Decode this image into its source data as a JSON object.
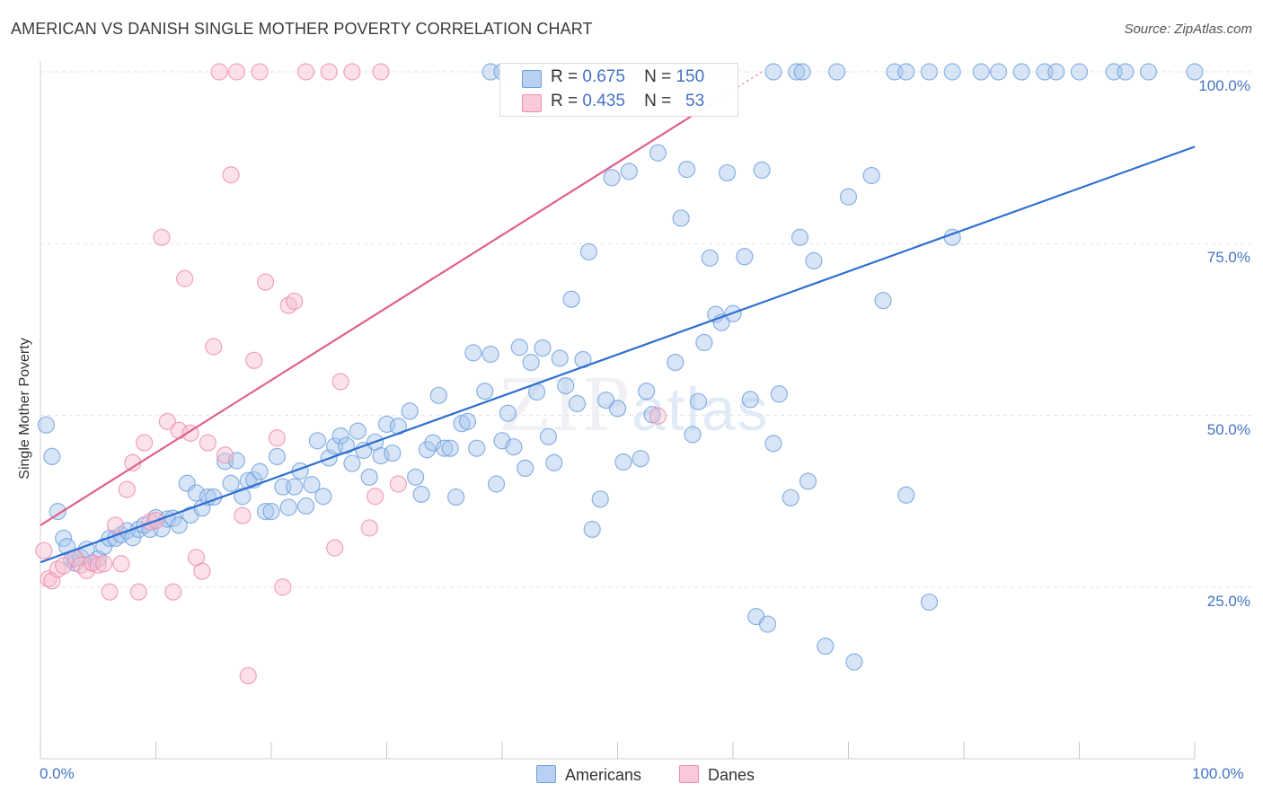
{
  "title": "AMERICAN VS DANISH SINGLE MOTHER POVERTY CORRELATION CHART",
  "source": "Source: ZipAtlas.com",
  "watermark": {
    "zip": "ZIP",
    "atlas": "atlas"
  },
  "stats": {
    "americans": {
      "r_label": "R =",
      "r": "0.675",
      "n_label": "N =",
      "n": "150"
    },
    "danes": {
      "r_label": "R =",
      "r": "0.435",
      "n_label": "N =",
      "n": "53"
    }
  },
  "legend": {
    "americans": "Americans",
    "danes": "Danes"
  },
  "colors": {
    "americans": "#6fa0dc",
    "americans_fill": "#a9c6ee",
    "americans_line": "#2f6fd0",
    "danes": "#f08cab",
    "danes_fill": "#f6bfd0",
    "danes_line": "#e0608a",
    "tick_text": "#4472c4"
  },
  "chart_data": {
    "type": "scatter",
    "title": "AMERICAN VS DANISH SINGLE MOTHER POVERTY CORRELATION CHART",
    "xlabel": "",
    "ylabel": "Single Mother Poverty",
    "xlim": [
      0,
      100
    ],
    "ylim": [
      0,
      100
    ],
    "x_tick_labels": [
      "0.0%",
      "100.0%"
    ],
    "y_ticks": [
      25,
      50,
      75,
      100
    ],
    "y_tick_labels": [
      "25.0%",
      "50.0%",
      "75.0%",
      "100.0%"
    ],
    "series": [
      {
        "name": "Americans",
        "r": 0.675,
        "n": 150,
        "trend": {
          "x": [
            0,
            100
          ],
          "y": [
            28.6,
            89.1
          ]
        },
        "points": [
          [
            0.5,
            48.6
          ],
          [
            1,
            44
          ],
          [
            1.5,
            36
          ],
          [
            2,
            32.1
          ],
          [
            2.3,
            30.9
          ],
          [
            2.7,
            29
          ],
          [
            3,
            28.5
          ],
          [
            3.5,
            29.3
          ],
          [
            4,
            30.5
          ],
          [
            4.5,
            28.5
          ],
          [
            5,
            29.1
          ],
          [
            5.5,
            30.9
          ],
          [
            6,
            32.1
          ],
          [
            6.5,
            32.1
          ],
          [
            7,
            32.6
          ],
          [
            7.5,
            33.2
          ],
          [
            8,
            32.2
          ],
          [
            8.5,
            33.4
          ],
          [
            9,
            34
          ],
          [
            9.5,
            33.4
          ],
          [
            10,
            35.1
          ],
          [
            10.5,
            33.5
          ],
          [
            11,
            34.9
          ],
          [
            11.5,
            35
          ],
          [
            12,
            34
          ],
          [
            12.7,
            40.1
          ],
          [
            13,
            35.5
          ],
          [
            13.5,
            38.7
          ],
          [
            14,
            36.5
          ],
          [
            14.5,
            38.1
          ],
          [
            15,
            38.1
          ],
          [
            16,
            43.3
          ],
          [
            16.5,
            40.1
          ],
          [
            17,
            43.4
          ],
          [
            17.5,
            38.2
          ],
          [
            18,
            40.5
          ],
          [
            18.5,
            40.6
          ],
          [
            19,
            41.8
          ],
          [
            19.5,
            36
          ],
          [
            20,
            36
          ],
          [
            20.5,
            44
          ],
          [
            21,
            39.6
          ],
          [
            21.5,
            36.6
          ],
          [
            22,
            39.6
          ],
          [
            22.5,
            41.9
          ],
          [
            23,
            36.8
          ],
          [
            23.5,
            39.9
          ],
          [
            24,
            46.3
          ],
          [
            24.5,
            38.2
          ],
          [
            25,
            43.8
          ],
          [
            25.5,
            45.5
          ],
          [
            26,
            47
          ],
          [
            26.5,
            45.6
          ],
          [
            27,
            43
          ],
          [
            27.5,
            47.7
          ],
          [
            28,
            44.9
          ],
          [
            28.5,
            41
          ],
          [
            29,
            46.1
          ],
          [
            29.5,
            44.1
          ],
          [
            30,
            48.7
          ],
          [
            30.5,
            44.5
          ],
          [
            31,
            48.4
          ],
          [
            32,
            50.6
          ],
          [
            32.5,
            41
          ],
          [
            33,
            38.5
          ],
          [
            33.5,
            45
          ],
          [
            34,
            46
          ],
          [
            34.5,
            52.9
          ],
          [
            35,
            45.2
          ],
          [
            35.5,
            45.2
          ],
          [
            36,
            38.1
          ],
          [
            36.5,
            48.8
          ],
          [
            37,
            49.1
          ],
          [
            37.5,
            59.1
          ],
          [
            37.8,
            45.2
          ],
          [
            38.5,
            53.5
          ],
          [
            39,
            58.9
          ],
          [
            39.5,
            40
          ],
          [
            40,
            46.3
          ],
          [
            40.5,
            50.3
          ],
          [
            41,
            45.4
          ],
          [
            41.5,
            59.9
          ],
          [
            42,
            42.3
          ],
          [
            42.5,
            57.7
          ],
          [
            43,
            53.4
          ],
          [
            43.5,
            59.8
          ],
          [
            44,
            46.9
          ],
          [
            44.5,
            43.1
          ],
          [
            45,
            58.3
          ],
          [
            45.5,
            54.3
          ],
          [
            46,
            66.9
          ],
          [
            46.5,
            51.7
          ],
          [
            47,
            58.1
          ],
          [
            47.5,
            73.8
          ],
          [
            47.8,
            33.4
          ],
          [
            48.5,
            37.8
          ],
          [
            49,
            52.2
          ],
          [
            49.5,
            84.6
          ],
          [
            50,
            51
          ],
          [
            50.5,
            43.2
          ],
          [
            51,
            85.5
          ],
          [
            52,
            43.7
          ],
          [
            52.5,
            53.5
          ],
          [
            53,
            50.1
          ],
          [
            53.5,
            88.2
          ],
          [
            55,
            57.7
          ],
          [
            55.5,
            78.7
          ],
          [
            56,
            85.8
          ],
          [
            56.5,
            47.2
          ],
          [
            57,
            52
          ],
          [
            57.5,
            60.6
          ],
          [
            58,
            72.9
          ],
          [
            58.5,
            64.7
          ],
          [
            59,
            63.5
          ],
          [
            59.5,
            85.3
          ],
          [
            60,
            64.8
          ],
          [
            61,
            73.1
          ],
          [
            61.5,
            52.3
          ],
          [
            62,
            20.7
          ],
          [
            62.5,
            85.7
          ],
          [
            63,
            19.6
          ],
          [
            63.5,
            45.9
          ],
          [
            64,
            53.1
          ],
          [
            65,
            38
          ],
          [
            65.8,
            75.9
          ],
          [
            66.5,
            40.4
          ],
          [
            67,
            72.5
          ],
          [
            68,
            16.4
          ],
          [
            70,
            81.8
          ],
          [
            70.5,
            14.1
          ],
          [
            72,
            84.9
          ],
          [
            73,
            66.7
          ],
          [
            75,
            38.4
          ],
          [
            77,
            22.8
          ],
          [
            79,
            75.9
          ],
          [
            63.5,
            100
          ],
          [
            65.5,
            100
          ],
          [
            66,
            100
          ],
          [
            69,
            100
          ],
          [
            74,
            100
          ],
          [
            75,
            100
          ],
          [
            77,
            100
          ],
          [
            79,
            100
          ],
          [
            81.5,
            100
          ],
          [
            83,
            100
          ],
          [
            85,
            100
          ],
          [
            87,
            100
          ],
          [
            88,
            100
          ],
          [
            90,
            100
          ],
          [
            93,
            100
          ],
          [
            94,
            100
          ],
          [
            96,
            100
          ],
          [
            100,
            100
          ],
          [
            39,
            100
          ],
          [
            40,
            100
          ]
        ]
      },
      {
        "name": "Danes",
        "r": 0.435,
        "n": 53,
        "trend": {
          "x": [
            0,
            62.5
          ],
          "y": [
            34,
            100
          ]
        },
        "points": [
          [
            0.3,
            30.3
          ],
          [
            0.7,
            26.2
          ],
          [
            1,
            25.9
          ],
          [
            1.5,
            27.6
          ],
          [
            2,
            28.1
          ],
          [
            3,
            29.2
          ],
          [
            3.5,
            28.2
          ],
          [
            4,
            27.4
          ],
          [
            4.5,
            28.5
          ],
          [
            5,
            28.2
          ],
          [
            5.5,
            28.4
          ],
          [
            6,
            24.3
          ],
          [
            6.5,
            34
          ],
          [
            7,
            28.4
          ],
          [
            7.5,
            39.2
          ],
          [
            8,
            43.1
          ],
          [
            8.5,
            24.3
          ],
          [
            9,
            46
          ],
          [
            9.5,
            34.5
          ],
          [
            10,
            34.7
          ],
          [
            10.5,
            75.9
          ],
          [
            11,
            49.1
          ],
          [
            11.5,
            24.3
          ],
          [
            12,
            47.8
          ],
          [
            12.5,
            69.9
          ],
          [
            13,
            47.4
          ],
          [
            13.5,
            29.3
          ],
          [
            14,
            27.3
          ],
          [
            14.5,
            46
          ],
          [
            15,
            60
          ],
          [
            15.5,
            100
          ],
          [
            16,
            44.2
          ],
          [
            16.5,
            85
          ],
          [
            17,
            100
          ],
          [
            17.5,
            35.4
          ],
          [
            18,
            12.1
          ],
          [
            18.5,
            58
          ],
          [
            19,
            100
          ],
          [
            19.5,
            69.4
          ],
          [
            20.5,
            46.7
          ],
          [
            21,
            25
          ],
          [
            21.5,
            66
          ],
          [
            22,
            66.6
          ],
          [
            23,
            100
          ],
          [
            25,
            100
          ],
          [
            25.5,
            30.7
          ],
          [
            26,
            54.9
          ],
          [
            27,
            100
          ],
          [
            28.5,
            33.6
          ],
          [
            29,
            38.2
          ],
          [
            29.5,
            100
          ],
          [
            31,
            40
          ],
          [
            53.5,
            49.9
          ]
        ]
      }
    ]
  }
}
